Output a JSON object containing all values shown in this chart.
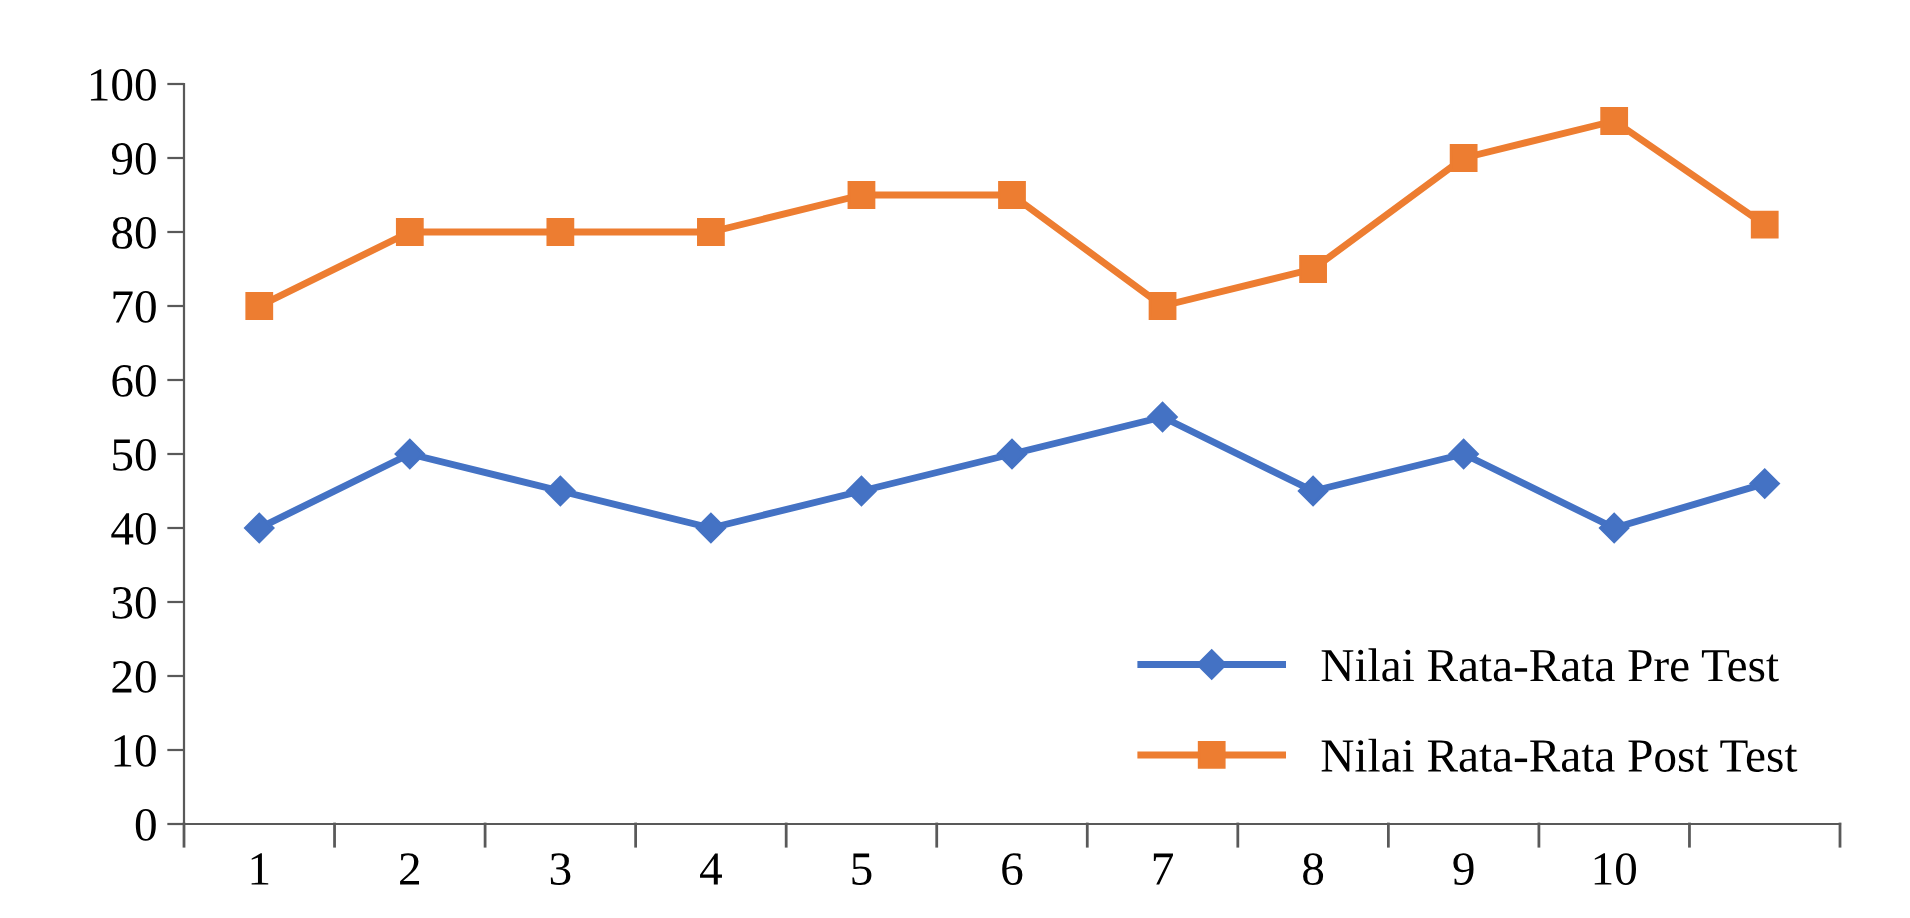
{
  "chart_data": {
    "type": "line",
    "categories": [
      "1",
      "2",
      "3",
      "4",
      "5",
      "6",
      "7",
      "8",
      "9",
      "10",
      null
    ],
    "series": [
      {
        "name": "Nilai Rata-Rata Pre Test",
        "color": "#4472c4",
        "marker": "diamond",
        "values": [
          40,
          50,
          45,
          40,
          45,
          50,
          55,
          45,
          50,
          40,
          46
        ]
      },
      {
        "name": "Nilai Rata-Rata Post Test",
        "color": "#ed7d31",
        "marker": "square",
        "values": [
          70,
          80,
          80,
          80,
          85,
          85,
          70,
          75,
          90,
          95,
          81
        ]
      }
    ],
    "ylim": [
      0,
      100
    ],
    "yticks": [
      0,
      10,
      20,
      30,
      40,
      50,
      60,
      70,
      80,
      90,
      100
    ],
    "grid": false,
    "legend": "bottom right",
    "line_style": "solid"
  }
}
